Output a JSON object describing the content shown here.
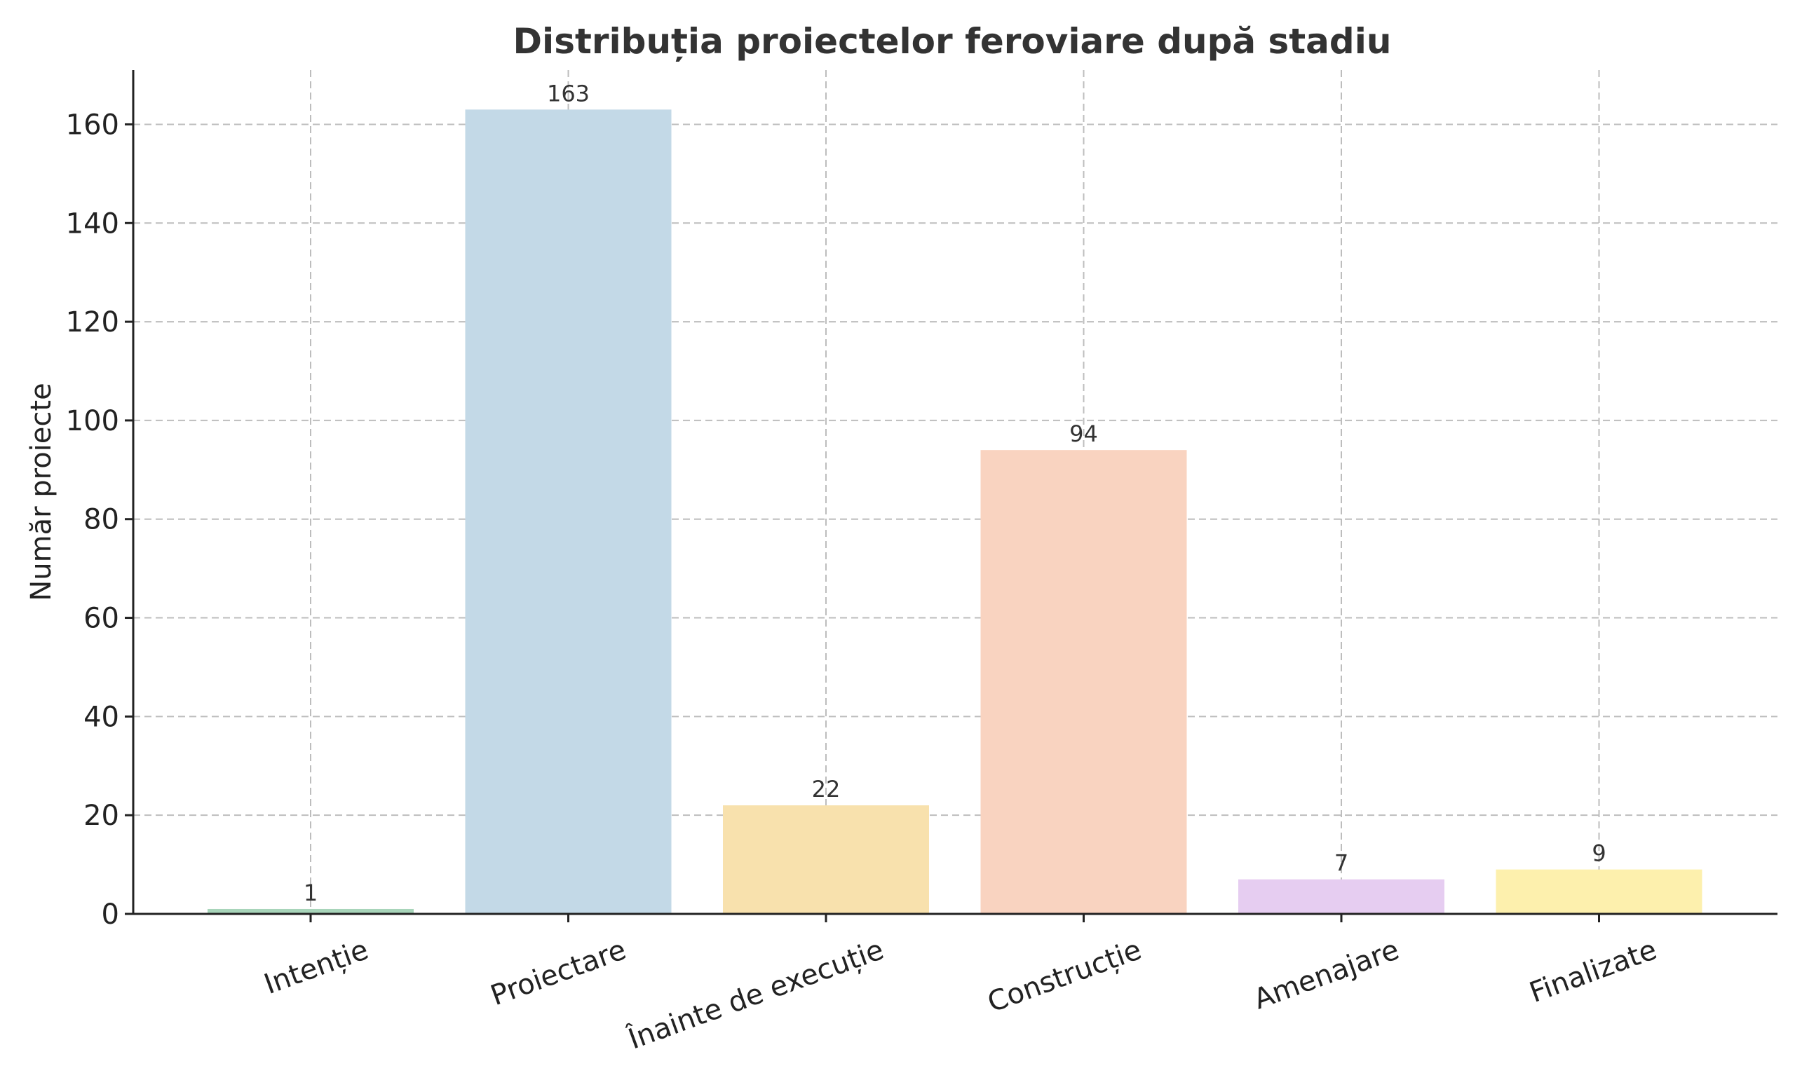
{
  "chart_data": {
    "type": "bar",
    "title": "Distribuția proiectelor feroviare după stadiu",
    "xlabel": "",
    "ylabel": "Număr proiecte",
    "categories": [
      "Intenție",
      "Proiectare",
      "Înainte de execuție",
      "Construcție",
      "Amenajare",
      "Finalizate"
    ],
    "values": [
      1,
      163,
      22,
      94,
      7,
      9
    ],
    "data_labels": [
      "1",
      "163",
      "22",
      "94",
      "7",
      "9"
    ],
    "colors": [
      "#a8d5ba",
      "#c3d9e7",
      "#f8e1ad",
      "#f9d3c0",
      "#e6cdf1",
      "#fdf0ad"
    ],
    "ylim": [
      0,
      171
    ],
    "yticks": [
      0,
      20,
      40,
      60,
      80,
      100,
      120,
      140,
      160
    ],
    "ytick_labels": [
      "0",
      "20",
      "40",
      "60",
      "80",
      "100",
      "120",
      "140",
      "160"
    ],
    "grid": true,
    "legend": "none"
  }
}
